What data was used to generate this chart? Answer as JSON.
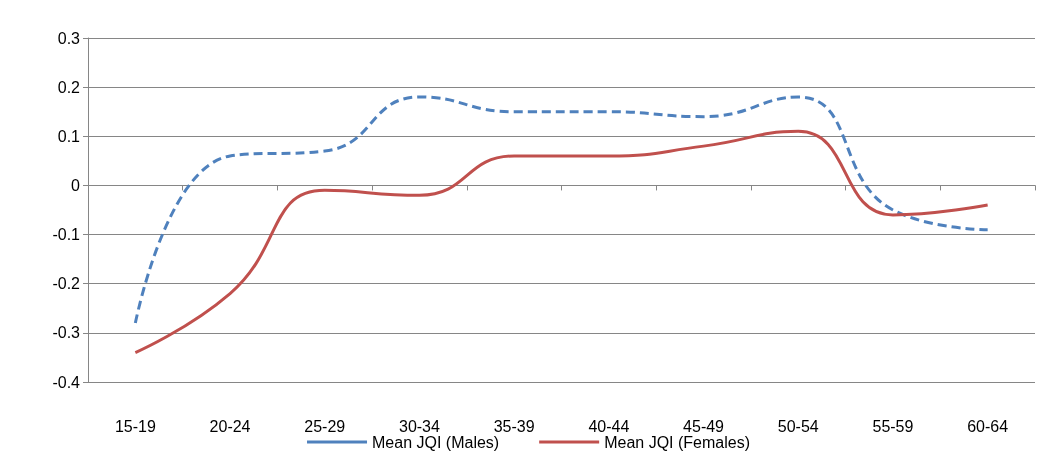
{
  "chart_data": {
    "type": "line",
    "categories": [
      "15-19",
      "20-24",
      "25-29",
      "30-34",
      "35-39",
      "40-44",
      "45-49",
      "50-54",
      "55-59",
      "60-64"
    ],
    "series": [
      {
        "name": "Mean JQI (Males)",
        "color": "#4f81bd",
        "line_style": "dashed",
        "values": [
          -0.28,
          0.06,
          0.07,
          0.18,
          0.15,
          0.15,
          0.14,
          0.18,
          -0.05,
          -0.09
        ]
      },
      {
        "name": "Mean JQI (Females)",
        "color": "#c0504d",
        "line_style": "solid",
        "values": [
          -0.34,
          -0.22,
          -0.01,
          -0.02,
          0.06,
          0.06,
          0.08,
          0.11,
          -0.06,
          -0.04
        ]
      }
    ],
    "ylim": [
      -0.4,
      0.3
    ],
    "yticks": [
      -0.4,
      -0.3,
      -0.2,
      -0.1,
      0,
      0.1,
      0.2,
      0.3
    ],
    "grid": "y",
    "legend": "bottom",
    "marker": "none"
  }
}
